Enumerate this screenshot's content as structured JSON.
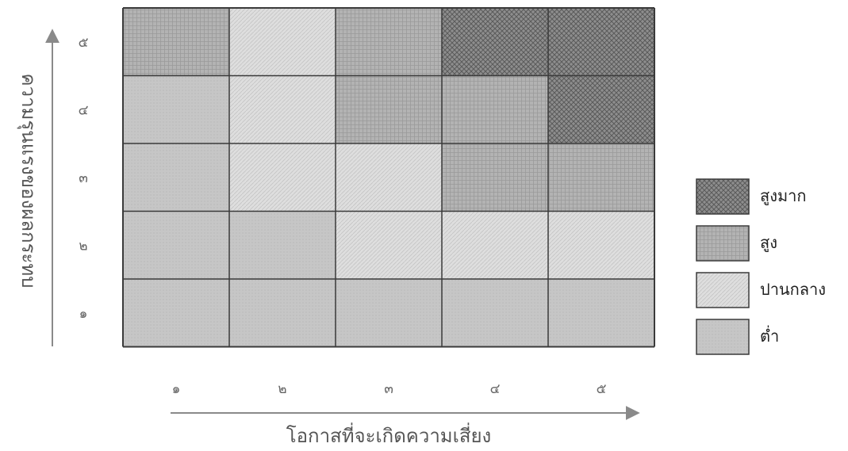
{
  "chart_data": {
    "type": "heatmap",
    "xlabel": "โอกาสที่จะเกิดความเสี่ยง",
    "ylabel": "ความรุนแรงของผลกระทบ",
    "x_ticks": [
      "๑",
      "๒",
      "๓",
      "๔",
      "๕"
    ],
    "y_ticks": [
      "๑",
      "๒",
      "๓",
      "๔",
      "๕"
    ],
    "levels": [
      {
        "key": "very_high",
        "label": "สูงมาก",
        "color": "#8e8e8e"
      },
      {
        "key": "high",
        "label": "สูง",
        "color": "#b3b3b3"
      },
      {
        "key": "medium",
        "label": "ปานกลาง",
        "color": "#dddddd"
      },
      {
        "key": "low",
        "label": "ต่ำ",
        "color": "#c6c6c6"
      }
    ],
    "grid": [
      [
        "low",
        "low",
        "low",
        "low",
        "low"
      ],
      [
        "low",
        "low",
        "medium",
        "medium",
        "medium"
      ],
      [
        "low",
        "medium",
        "medium",
        "high",
        "high"
      ],
      [
        "low",
        "medium",
        "high",
        "high",
        "very_high"
      ],
      [
        "high",
        "medium",
        "high",
        "very_high",
        "very_high"
      ]
    ]
  }
}
